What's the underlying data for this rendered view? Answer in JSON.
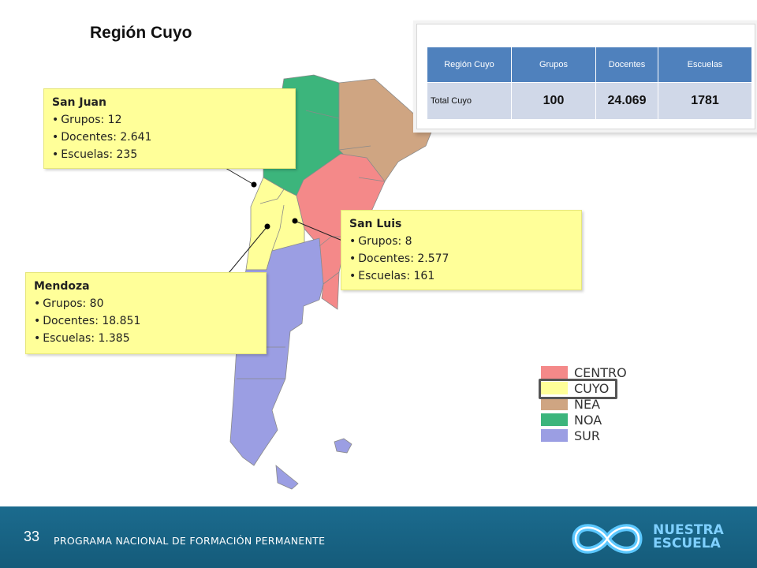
{
  "title": "Región Cuyo",
  "callouts": {
    "san_juan": {
      "name": "San Juan",
      "items": [
        "Grupos: 12",
        "Docentes: 2.641",
        "Escuelas: 235"
      ]
    },
    "san_luis": {
      "name": "San Luis",
      "items": [
        "Grupos: 8",
        "Docentes: 2.577",
        "Escuelas: 161"
      ]
    },
    "mendoza": {
      "name": "Mendoza",
      "items": [
        "Grupos: 80",
        "Docentes: 18.851",
        "Escuelas: 1.385"
      ]
    }
  },
  "table": {
    "headers": [
      "Región Cuyo",
      "Grupos",
      "Docentes",
      "Escuelas"
    ],
    "row": {
      "label": "Total Cuyo",
      "grupos": "100",
      "docentes": "24.069",
      "escuelas": "1781"
    }
  },
  "legend": [
    {
      "label": "CENTRO",
      "color": "#f48989"
    },
    {
      "label": "CUYO",
      "color": "#ffff99"
    },
    {
      "label": "NEA",
      "color": "#cfa582"
    },
    {
      "label": "NOA",
      "color": "#3cb57c"
    },
    {
      "label": "SUR",
      "color": "#9b9ee3"
    }
  ],
  "highlighted_region": "CUYO",
  "footer": {
    "page_number": "33",
    "program": "PROGRAMA NACIONAL DE FORMACIÓN PERMANENTE",
    "brand_line1": "NUESTRA",
    "brand_line2": "ESCUELA"
  }
}
